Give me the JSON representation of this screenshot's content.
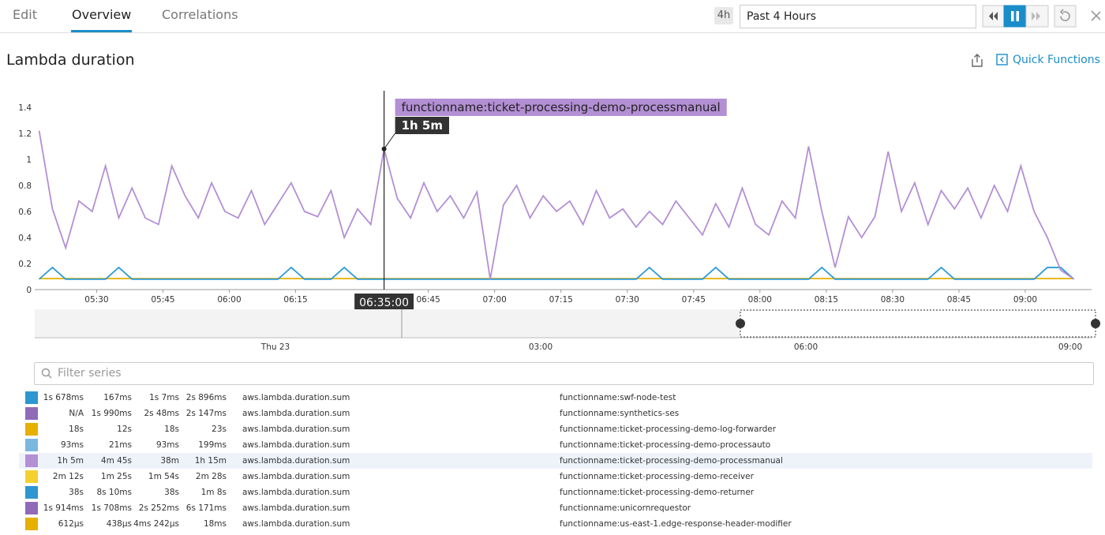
{
  "header": {
    "tabs": [
      "Edit",
      "Overview",
      "Correlations"
    ],
    "active_tab": 1,
    "time_badge": "4h",
    "time_range": "Past 4 Hours"
  },
  "widget": {
    "title": "Lambda duration",
    "quick_functions": "Quick Functions"
  },
  "chart_data": {
    "type": "line",
    "xlim": [
      "05:16",
      "09:15"
    ],
    "xticks": [
      "05:30",
      "05:45",
      "06:00",
      "06:15",
      "06:45",
      "07:00",
      "07:15",
      "07:30",
      "07:45",
      "08:00",
      "08:15",
      "08:30",
      "08:45",
      "09:00"
    ],
    "ylim": [
      0,
      1.4
    ],
    "yticks": [
      0,
      0.2,
      0.4,
      0.6,
      0.8,
      1,
      1.2,
      1.4
    ],
    "grid": false,
    "x": [
      "05:17",
      "05:20",
      "05:23",
      "05:26",
      "05:29",
      "05:32",
      "05:35",
      "05:38",
      "05:41",
      "05:44",
      "05:47",
      "05:50",
      "05:53",
      "05:56",
      "05:59",
      "06:02",
      "06:05",
      "06:08",
      "06:11",
      "06:14",
      "06:17",
      "06:20",
      "06:23",
      "06:26",
      "06:29",
      "06:32",
      "06:35",
      "06:38",
      "06:41",
      "06:44",
      "06:47",
      "06:50",
      "06:53",
      "06:56",
      "06:59",
      "07:02",
      "07:05",
      "07:08",
      "07:11",
      "07:14",
      "07:17",
      "07:20",
      "07:23",
      "07:26",
      "07:29",
      "07:32",
      "07:35",
      "07:38",
      "07:41",
      "07:44",
      "07:47",
      "07:50",
      "07:53",
      "07:56",
      "07:59",
      "08:02",
      "08:05",
      "08:08",
      "08:11",
      "08:14",
      "08:17",
      "08:20",
      "08:23",
      "08:26",
      "08:29",
      "08:32",
      "08:35",
      "08:38",
      "08:41",
      "08:44",
      "08:47",
      "08:50",
      "08:53",
      "08:56",
      "08:59",
      "09:02",
      "09:05",
      "09:08",
      "09:11"
    ],
    "series": [
      {
        "color": "#e6b000",
        "values": [
          0.085,
          0.085,
          0.085,
          0.085,
          0.085,
          0.085,
          0.085,
          0.085,
          0.085,
          0.085,
          0.085,
          0.085,
          0.085,
          0.085,
          0.085,
          0.085,
          0.085,
          0.085,
          0.085,
          0.085,
          0.085,
          0.085,
          0.085,
          0.085,
          0.085,
          0.085,
          0.085,
          0.085,
          0.085,
          0.085,
          0.085,
          0.085,
          0.085,
          0.085,
          0.085,
          0.085,
          0.085,
          0.085,
          0.085,
          0.085,
          0.085,
          0.085,
          0.085,
          0.085,
          0.085,
          0.085,
          0.085,
          0.085,
          0.085,
          0.085,
          0.085,
          0.085,
          0.085,
          0.085,
          0.085,
          0.085,
          0.085,
          0.085,
          0.085,
          0.085,
          0.085,
          0.085,
          0.085,
          0.085,
          0.085,
          0.085,
          0.085,
          0.085,
          0.085,
          0.085,
          0.085,
          0.085,
          0.085,
          0.085,
          0.085,
          0.085,
          0.085,
          0.085,
          0.085
        ]
      },
      {
        "color": "#2e9bd6",
        "values": [
          0.08,
          0.17,
          0.08,
          0.08,
          0.08,
          0.08,
          0.17,
          0.08,
          0.08,
          0.08,
          0.08,
          0.08,
          0.08,
          0.08,
          0.08,
          0.08,
          0.08,
          0.08,
          0.08,
          0.17,
          0.08,
          0.08,
          0.08,
          0.17,
          0.08,
          0.08,
          0.08,
          0.08,
          0.08,
          0.08,
          0.08,
          0.08,
          0.08,
          0.08,
          0.08,
          0.08,
          0.08,
          0.08,
          0.08,
          0.08,
          0.08,
          0.08,
          0.08,
          0.08,
          0.08,
          0.08,
          0.17,
          0.08,
          0.08,
          0.08,
          0.08,
          0.17,
          0.08,
          0.08,
          0.08,
          0.08,
          0.08,
          0.08,
          0.08,
          0.17,
          0.08,
          0.08,
          0.08,
          0.08,
          0.08,
          0.08,
          0.08,
          0.08,
          0.17,
          0.08,
          0.08,
          0.08,
          0.08,
          0.08,
          0.08,
          0.08,
          0.17,
          0.17,
          0.08
        ]
      },
      {
        "color": "#b38fd4",
        "values": [
          1.22,
          0.62,
          0.32,
          0.68,
          0.6,
          0.95,
          0.55,
          0.78,
          0.55,
          0.5,
          0.95,
          0.72,
          0.55,
          0.82,
          0.6,
          0.55,
          0.76,
          0.5,
          0.66,
          0.82,
          0.6,
          0.56,
          0.76,
          0.4,
          0.62,
          0.5,
          1.08,
          0.7,
          0.55,
          0.82,
          0.6,
          0.72,
          0.55,
          0.75,
          0.08,
          0.65,
          0.8,
          0.55,
          0.72,
          0.6,
          0.68,
          0.5,
          0.76,
          0.55,
          0.62,
          0.48,
          0.6,
          0.5,
          0.68,
          0.55,
          0.42,
          0.66,
          0.48,
          0.78,
          0.5,
          0.42,
          0.68,
          0.55,
          1.1,
          0.6,
          0.17,
          0.56,
          0.4,
          0.56,
          1.06,
          0.6,
          0.82,
          0.5,
          0.76,
          0.62,
          0.78,
          0.55,
          0.8,
          0.6,
          0.95,
          0.6,
          0.4,
          0.15,
          0.08
        ]
      }
    ],
    "tooltip": {
      "series_index": 2,
      "point_index": 26,
      "time": "06:35:00",
      "series_label": "functionname:ticket-processing-demo-processmanual",
      "value_label": "1h 5m"
    }
  },
  "overview": {
    "labels": [
      "Thu 23",
      "03:00",
      "06:00",
      "09:00"
    ]
  },
  "filter": {
    "placeholder": "Filter series"
  },
  "table": {
    "selected_row": 4,
    "rows": [
      {
        "color": "#2e96d0",
        "cells": [
          "1s 678ms",
          "167ms",
          "1s 7ms",
          "2s 896ms",
          "aws.lambda.duration.sum",
          "functionname:swf-node-test"
        ]
      },
      {
        "color": "#8f6bb8",
        "cells": [
          "N/A",
          "1s 990ms",
          "2s 48ms",
          "2s 147ms",
          "aws.lambda.duration.sum",
          "functionname:synthetics-ses"
        ]
      },
      {
        "color": "#e6b000",
        "cells": [
          "18s",
          "12s",
          "18s",
          "23s",
          "aws.lambda.duration.sum",
          "functionname:ticket-processing-demo-log-forwarder"
        ]
      },
      {
        "color": "#7ab8e0",
        "cells": [
          "93ms",
          "21ms",
          "93ms",
          "199ms",
          "aws.lambda.duration.sum",
          "functionname:ticket-processing-demo-processauto"
        ]
      },
      {
        "color": "#b38fd4",
        "cells": [
          "1h 5m",
          "4m 45s",
          "38m",
          "1h 15m",
          "aws.lambda.duration.sum",
          "functionname:ticket-processing-demo-processmanual"
        ]
      },
      {
        "color": "#f5d130",
        "cells": [
          "2m 12s",
          "1m 25s",
          "1m 54s",
          "2m 28s",
          "aws.lambda.duration.sum",
          "functionname:ticket-processing-demo-receiver"
        ]
      },
      {
        "color": "#2e96d0",
        "cells": [
          "38s",
          "8s 10ms",
          "38s",
          "1m 8s",
          "aws.lambda.duration.sum",
          "functionname:ticket-processing-demo-returner"
        ]
      },
      {
        "color": "#8f6bb8",
        "cells": [
          "1s 914ms",
          "1s 708ms",
          "2s 252ms",
          "6s 171ms",
          "aws.lambda.duration.sum",
          "functionname:unicornrequestor"
        ]
      },
      {
        "color": "#e6b000",
        "cells": [
          "612µs",
          "438µs",
          "4ms 242µs",
          "18ms",
          "aws.lambda.duration.sum",
          "functionname:us-east-1.edge-response-header-modifier"
        ]
      }
    ]
  }
}
